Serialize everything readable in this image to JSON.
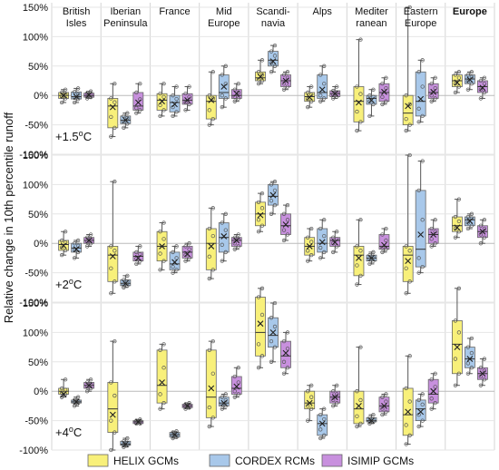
{
  "chart_data": {
    "type": "boxplot",
    "ylabel": "Relative change in 10th percentile runoff",
    "yticks": [
      "150%",
      "100%",
      "50%",
      "0%",
      "-50%",
      "-100%"
    ],
    "ylim": [
      -100,
      150
    ],
    "regions": [
      "British Isles",
      "Iberian Peninsula",
      "France",
      "Mid Europe",
      "Scandi-navia",
      "Alps",
      "Mediter ranean",
      "Eastern Europe",
      "Europe"
    ],
    "region_lines": [
      [
        "British",
        "Isles"
      ],
      [
        "Iberian",
        "Peninsula"
      ],
      [
        "France"
      ],
      [
        "Mid",
        "Europe"
      ],
      [
        "Scandi-",
        "navia"
      ],
      [
        "Alps"
      ],
      [
        "Mediter",
        "ranean"
      ],
      [
        "Eastern",
        "Europe"
      ],
      [
        "Europe"
      ]
    ],
    "series": [
      {
        "name": "HELIX GCMs",
        "color": "#f8f07a"
      },
      {
        "name": "CORDEX RCMs",
        "color": "#a8c8ea"
      },
      {
        "name": "ISIMIP GCMs",
        "color": "#c890de"
      }
    ],
    "legend": [
      "HELIX GCMs",
      "CORDEX RCMs",
      "ISIMIP GCMs"
    ],
    "scenarios": [
      {
        "label": "+1.5",
        "unit": "oC",
        "boxes": [
          [
            [
              -12,
              -5,
              0,
              5,
              10,
              0
            ],
            [
              -12,
              -6,
              -2,
              6,
              12,
              -2
            ],
            [
              -5,
              -3,
              0,
              4,
              7,
              1
            ]
          ],
          [
            [
              -70,
              -55,
              -18,
              -5,
              20,
              -20
            ],
            [
              -55,
              -48,
              -42,
              -35,
              -30,
              -42
            ],
            [
              -30,
              -25,
              -18,
              5,
              20,
              -12
            ]
          ],
          [
            [
              -35,
              -25,
              -8,
              3,
              20,
              -10
            ],
            [
              -35,
              -28,
              -12,
              0,
              15,
              -15
            ],
            [
              -25,
              -15,
              -8,
              3,
              15,
              -8
            ]
          ],
          [
            [
              -50,
              -40,
              -10,
              0,
              40,
              -8
            ],
            [
              -20,
              -5,
              5,
              35,
              50,
              15
            ],
            [
              -10,
              -5,
              0,
              10,
              20,
              3
            ]
          ],
          [
            [
              20,
              25,
              30,
              40,
              60,
              32
            ],
            [
              40,
              50,
              60,
              75,
              85,
              58
            ],
            [
              10,
              15,
              25,
              35,
              40,
              25
            ]
          ],
          [
            [
              -20,
              -10,
              -2,
              5,
              15,
              -3
            ],
            [
              -10,
              -5,
              5,
              35,
              50,
              10
            ],
            [
              -5,
              -2,
              3,
              8,
              15,
              3
            ]
          ],
          [
            [
              -60,
              -45,
              -10,
              15,
              95,
              -12
            ],
            [
              -35,
              -15,
              -5,
              0,
              10,
              -8
            ],
            [
              -15,
              -10,
              5,
              20,
              30,
              6
            ]
          ],
          [
            [
              -60,
              -50,
              -30,
              0,
              150,
              -18
            ],
            [
              -45,
              -35,
              -10,
              40,
              60,
              -6
            ],
            [
              -10,
              -5,
              5,
              20,
              30,
              6
            ]
          ],
          [
            [
              5,
              15,
              25,
              35,
              40,
              22
            ],
            [
              10,
              20,
              28,
              35,
              40,
              27
            ],
            [
              -5,
              5,
              15,
              25,
              30,
              13
            ]
          ]
        ]
      },
      {
        "label": "+2",
        "unit": "oC",
        "boxes": [
          [
            [
              -20,
              -12,
              -2,
              5,
              20,
              -4
            ],
            [
              -25,
              -15,
              -8,
              0,
              5,
              -10
            ],
            [
              -5,
              0,
              5,
              10,
              15,
              5
            ]
          ],
          [
            [
              -85,
              -65,
              -20,
              -5,
              105,
              -22
            ],
            [
              -75,
              -72,
              -68,
              -62,
              -55,
              -68
            ],
            [
              -35,
              -30,
              -22,
              -15,
              -5,
              -25
            ]
          ],
          [
            [
              -45,
              -30,
              -5,
              20,
              35,
              -5
            ],
            [
              -50,
              -45,
              -35,
              -15,
              -5,
              -32
            ],
            [
              -30,
              -25,
              -15,
              -5,
              0,
              -18
            ]
          ],
          [
            [
              -60,
              -45,
              0,
              25,
              60,
              -5
            ],
            [
              -30,
              -15,
              10,
              35,
              50,
              12
            ],
            [
              -10,
              -5,
              5,
              10,
              15,
              5
            ]
          ],
          [
            [
              20,
              30,
              50,
              70,
              85,
              48
            ],
            [
              50,
              65,
              80,
              100,
              105,
              82
            ],
            [
              5,
              15,
              30,
              50,
              65,
              32
            ]
          ],
          [
            [
              -30,
              -20,
              -5,
              10,
              25,
              -5
            ],
            [
              -25,
              -15,
              0,
              25,
              40,
              2
            ],
            [
              -15,
              -5,
              5,
              10,
              20,
              2
            ]
          ],
          [
            [
              -70,
              -55,
              -20,
              -5,
              40,
              -25
            ],
            [
              -35,
              -30,
              -25,
              -20,
              -15,
              -25
            ],
            [
              -15,
              -10,
              -5,
              15,
              25,
              -3
            ]
          ],
          [
            [
              -85,
              -65,
              -20,
              -5,
              150,
              -30
            ],
            [
              -50,
              -40,
              -10,
              90,
              140,
              15
            ],
            [
              -5,
              0,
              15,
              25,
              40,
              15
            ]
          ],
          [
            [
              10,
              20,
              30,
              45,
              75,
              27
            ],
            [
              25,
              30,
              40,
              45,
              50,
              38
            ],
            [
              0,
              10,
              20,
              30,
              40,
              20
            ]
          ]
        ]
      },
      {
        "label": "+4",
        "unit": "oC",
        "boxes": [
          [
            [
              -10,
              -5,
              0,
              5,
              20,
              -5
            ],
            [
              -25,
              -20,
              -18,
              -15,
              -10,
              -18
            ],
            [
              0,
              5,
              10,
              15,
              20,
              10
            ]
          ],
          [
            [
              -100,
              -70,
              -30,
              15,
              85,
              -40
            ],
            [
              -95,
              -92,
              -90,
              -85,
              -80,
              -90
            ],
            [
              -55,
              -55,
              -52,
              -50,
              -48,
              -52
            ]
          ],
          [
            [
              -30,
              -20,
              10,
              70,
              80,
              15
            ],
            [
              -80,
              -78,
              -74,
              -70,
              -68,
              -74
            ],
            [
              -30,
              -28,
              -25,
              -22,
              -20,
              -25
            ]
          ],
          [
            [
              -60,
              -45,
              -10,
              70,
              85,
              5
            ],
            [
              -30,
              -25,
              -20,
              -10,
              -5,
              -20
            ],
            [
              -10,
              -5,
              5,
              25,
              40,
              8
            ]
          ],
          [
            [
              40,
              60,
              100,
              160,
              175,
              115
            ],
            [
              50,
              75,
              95,
              125,
              150,
              100
            ],
            [
              30,
              40,
              60,
              85,
              100,
              65
            ]
          ],
          [
            [
              -50,
              -30,
              -20,
              0,
              10,
              -20
            ],
            [
              -80,
              -75,
              -55,
              -40,
              -30,
              -55
            ],
            [
              -25,
              -20,
              -10,
              0,
              10,
              -10
            ]
          ],
          [
            [
              -60,
              -55,
              -30,
              0,
              75,
              -25
            ],
            [
              -55,
              -52,
              -50,
              -45,
              -40,
              -50
            ],
            [
              -40,
              -35,
              -25,
              -10,
              -5,
              -25
            ]
          ],
          [
            [
              -90,
              -75,
              -40,
              5,
              60,
              -35
            ],
            [
              -60,
              -50,
              -30,
              -15,
              -5,
              -35
            ],
            [
              -30,
              -20,
              -5,
              20,
              30,
              0
            ]
          ],
          [
            [
              10,
              30,
              80,
              120,
              175,
              75
            ],
            [
              30,
              40,
              55,
              75,
              90,
              55
            ],
            [
              10,
              20,
              30,
              40,
              55,
              30
            ]
          ]
        ]
      }
    ]
  }
}
